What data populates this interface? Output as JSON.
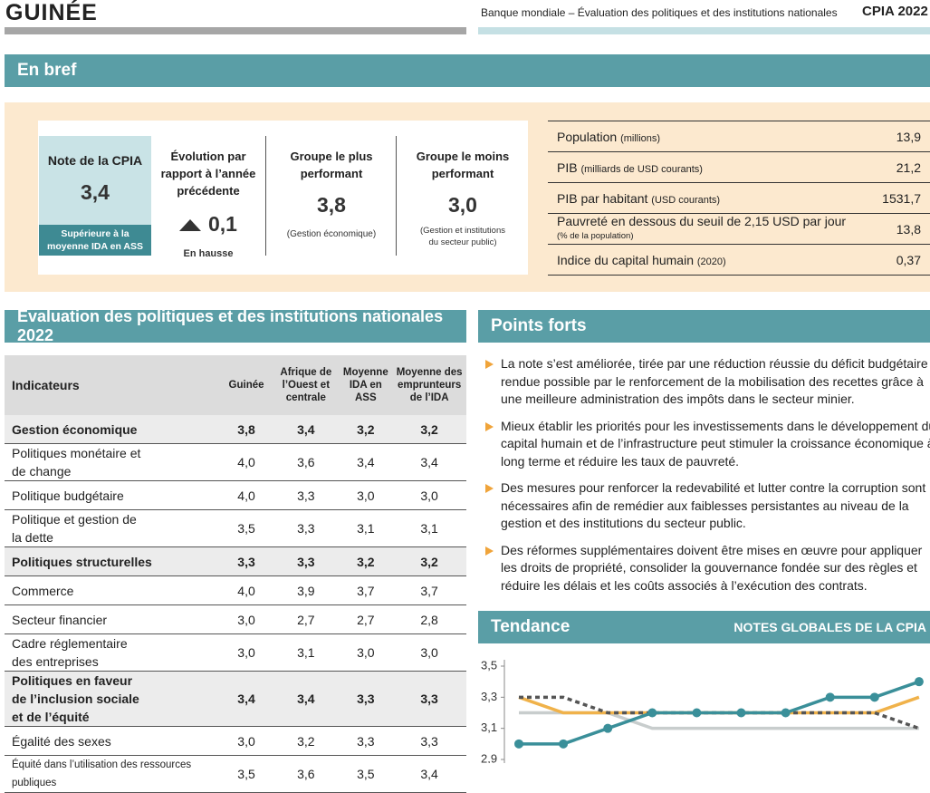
{
  "header": {
    "country": "GUINÉE",
    "source": "Banque mondiale – Évaluation des politiques et des institutions nationales",
    "badge": "CPIA 2022"
  },
  "brief": {
    "title": "En bref",
    "cpia": {
      "label": "Note de la CPIA",
      "value": "3,4",
      "note": "Supérieure à la moyenne IDA en ASS"
    },
    "change": {
      "label": "Évolution par rapport à l’année précédente",
      "value": "0,1",
      "note": "En hausse"
    },
    "best": {
      "label": "Groupe le plus performant",
      "value": "3,8",
      "note": "(Gestion économique)"
    },
    "worst": {
      "label": "Groupe le moins performant",
      "value": "3,0",
      "note": "(Gestion et institutions du secteur public)"
    },
    "stats": [
      {
        "label": "Population",
        "unit": "(millions)",
        "value": "13,9"
      },
      {
        "label": "PIB",
        "unit": "(milliards de USD courants)",
        "value": "21,2"
      },
      {
        "label": "PIB par habitant",
        "unit": "(USD courants)",
        "value": "1531,7"
      },
      {
        "label": "Pauvreté en dessous du seuil de 2,15 USD par jour",
        "unit": "(% de la population)",
        "value": "13,8"
      },
      {
        "label": "Indice du capital humain",
        "unit": "(2020)",
        "value": "0,37"
      }
    ]
  },
  "assessment": {
    "title": "Évaluation des politiques et des institutions nationales 2022",
    "columns": [
      "Indicateurs",
      "Guinée",
      "Afrique de l’Ouest et centrale",
      "Moyenne IDA en ASS",
      "Moyenne des emprunteurs de l’IDA"
    ],
    "rows": [
      {
        "group": true,
        "cells": [
          "Gestion économique",
          "3,8",
          "3,4",
          "3,2",
          "3,2"
        ]
      },
      {
        "group": false,
        "cells": [
          "Politiques monétaire et de change",
          "4,0",
          "3,6",
          "3,4",
          "3,4"
        ]
      },
      {
        "group": false,
        "cells": [
          "Politique budgétaire",
          "4,0",
          "3,3",
          "3,0",
          "3,0"
        ]
      },
      {
        "group": false,
        "cells": [
          "Politique et gestion de la dette",
          "3,5",
          "3,3",
          "3,1",
          "3,1"
        ]
      },
      {
        "group": true,
        "cells": [
          "Politiques structurelles",
          "3,3",
          "3,3",
          "3,2",
          "3,2"
        ]
      },
      {
        "group": false,
        "cells": [
          "Commerce",
          "4,0",
          "3,9",
          "3,7",
          "3,7"
        ]
      },
      {
        "group": false,
        "cells": [
          "Secteur financier",
          "3,0",
          "2,7",
          "2,7",
          "2,8"
        ]
      },
      {
        "group": false,
        "cells": [
          "Cadre réglementaire des entreprises",
          "3,0",
          "3,1",
          "3,0",
          "3,0"
        ]
      },
      {
        "group": true,
        "cells": [
          "Politiques en faveur de l’inclusion sociale et de l’équité",
          "3,4",
          "3,4",
          "3,3",
          "3,3"
        ]
      },
      {
        "group": false,
        "cells": [
          "Égalité des sexes",
          "3,0",
          "3,2",
          "3,3",
          "3,3"
        ]
      },
      {
        "group": false,
        "cells": [
          "Équité dans l’utilisation des ressources publiques",
          "3,5",
          "3,6",
          "3,5",
          "3,4"
        ]
      }
    ]
  },
  "strengths": {
    "title": "Points forts",
    "items": [
      "La note s’est améliorée, tirée par une réduction réussie du déficit budgétaire rendue possible par le renforcement de la mobilisation des recettes grâce à une meilleure administration des impôts dans le secteur minier.",
      "Mieux établir les priorités pour les investissements dans le développement du capital humain et de l’infrastructure peut stimuler la croissance économique à long terme et réduire les taux de pauvreté.",
      "Des mesures pour renforcer la redevabilité et lutter contre la corruption sont nécessaires afin de remédier aux faiblesses persistantes au niveau de la gestion et des institutions du secteur public.",
      "Des réformes supplémentaires doivent être mises en œuvre pour appliquer les droits de propriété, consolider la gouvernance fondée sur des règles et réduire les délais et les coûts associés à l’exécution des contrats."
    ]
  },
  "chart_data": {
    "type": "line",
    "title": "Tendance",
    "subtitle": "NOTES GLOBALES DE LA CPIA",
    "ylim": [
      2.9,
      3.5
    ],
    "yticks": [
      {
        "value": 2.9,
        "label": "2,9"
      },
      {
        "value": 3.1,
        "label": "3,1"
      },
      {
        "value": 3.3,
        "label": "3,3"
      },
      {
        "value": 3.5,
        "label": "3,5"
      }
    ],
    "series": [
      {
        "color": "#c8cdcd",
        "dashed": false,
        "markers": false,
        "values": [
          3.2,
          3.2,
          3.2,
          3.1,
          3.1,
          3.1,
          3.1,
          3.1,
          3.1,
          3.1
        ]
      },
      {
        "color": "#f0b24a",
        "dashed": false,
        "markers": false,
        "values": [
          3.3,
          3.2,
          3.2,
          3.2,
          3.2,
          3.2,
          3.2,
          3.2,
          3.2,
          3.3
        ]
      },
      {
        "color": "#555555",
        "dashed": true,
        "markers": false,
        "values": [
          3.3,
          3.3,
          3.2,
          3.2,
          3.2,
          3.2,
          3.2,
          3.2,
          3.2,
          3.1
        ]
      },
      {
        "color": "#3a8f99",
        "dashed": false,
        "markers": true,
        "values": [
          3.0,
          3.0,
          3.1,
          3.2,
          3.2,
          3.2,
          3.2,
          3.3,
          3.3,
          3.4
        ]
      }
    ]
  }
}
